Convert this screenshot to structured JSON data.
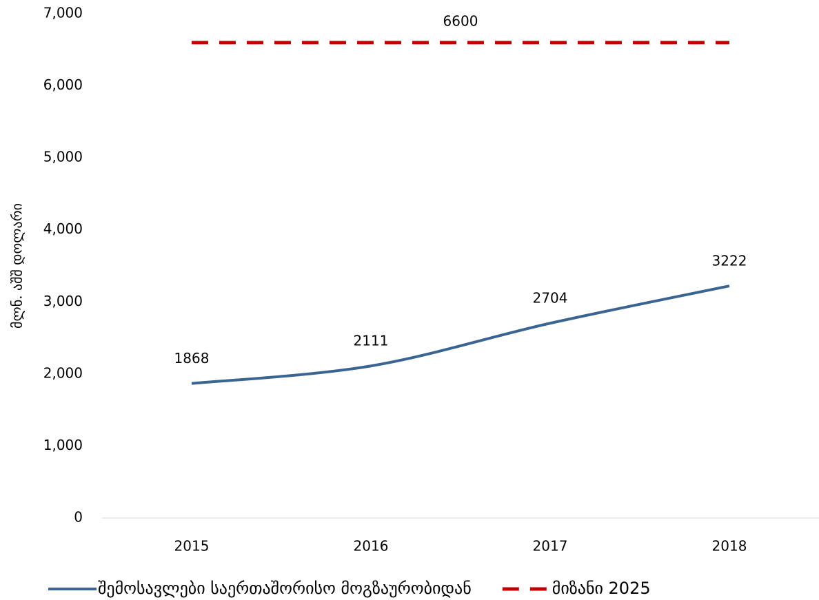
{
  "chart_data": {
    "type": "line",
    "y_label": "მლნ. აშშ დოლარი",
    "categories": [
      "2015",
      "2016",
      "2017",
      "2018"
    ],
    "series": [
      {
        "name": "შემოსავლები საერთაშორისო მოგზაურობიდან",
        "color": "#3a6592",
        "values": [
          1868,
          2111,
          2704,
          3222
        ],
        "smooth": true,
        "dashed": false
      },
      {
        "name": "მიზანი 2025",
        "color": "#c00000",
        "values": [
          6600,
          6600,
          6600,
          6600
        ],
        "smooth": false,
        "dashed": true
      }
    ],
    "ylim": [
      0,
      7000
    ],
    "yticks": [
      0,
      {
        "value": 1000,
        "label": "1,000"
      },
      {
        "value": 2000,
        "label": "2,000"
      },
      {
        "value": 3000,
        "label": "3,000"
      },
      {
        "value": 4000,
        "label": "4,000"
      },
      {
        "value": 5000,
        "label": "5,000"
      },
      {
        "value": 6000,
        "label": "6,000"
      },
      {
        "value": 7000,
        "label": "7,000"
      }
    ],
    "grid": false,
    "legend": "bottom"
  }
}
